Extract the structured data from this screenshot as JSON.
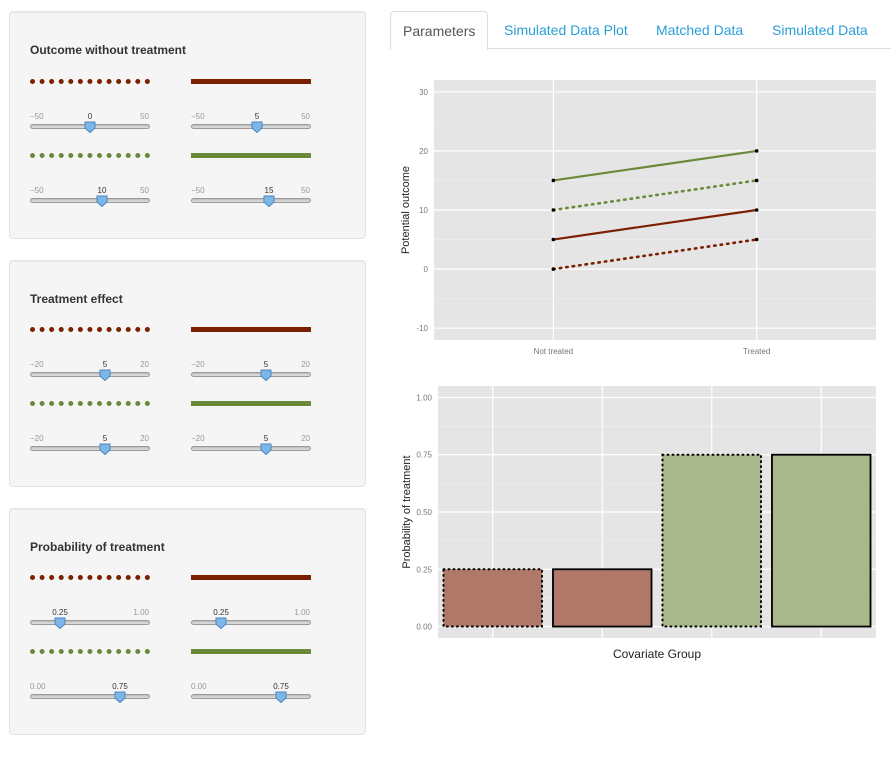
{
  "tabs": [
    {
      "label": "Parameters",
      "active": true
    },
    {
      "label": "Simulated Data Plot",
      "active": false
    },
    {
      "label": "Matched Data",
      "active": false
    },
    {
      "label": "Simulated Data",
      "active": false
    }
  ],
  "colors": {
    "red": "#7b2000",
    "green": "#6a8a3a",
    "bar_red": "#b07868",
    "bar_green": "#a8b88a",
    "plot_bg": "#e5e5e5",
    "accent": "#2a9fd6"
  },
  "panels": [
    {
      "title": "Outcome without treatment",
      "sliders": [
        {
          "min": "−50",
          "max": "50",
          "value": "0",
          "level": 0.5
        },
        {
          "min": "−50",
          "max": "50",
          "value": "5",
          "level": 0.55
        },
        {
          "min": "−50",
          "max": "50",
          "value": "10",
          "level": 0.6
        },
        {
          "min": "−50",
          "max": "50",
          "value": "15",
          "level": 0.65
        }
      ]
    },
    {
      "title": "Treatment effect",
      "sliders": [
        {
          "min": "−20",
          "max": "20",
          "value": "5",
          "level": 0.625
        },
        {
          "min": "−20",
          "max": "20",
          "value": "5",
          "level": 0.625
        },
        {
          "min": "−20",
          "max": "20",
          "value": "5",
          "level": 0.625
        },
        {
          "min": "−20",
          "max": "20",
          "value": "5",
          "level": 0.625
        }
      ]
    },
    {
      "title": "Probability of treatment",
      "sliders": [
        {
          "min": "",
          "max": "1.00",
          "value": "0.25",
          "level": 0.25
        },
        {
          "min": "",
          "max": "1.00",
          "value": "0.25",
          "level": 0.25
        },
        {
          "min": "0.00",
          "max": "",
          "value": "0.75",
          "level": 0.75
        },
        {
          "min": "0.00",
          "max": "",
          "value": "0.75",
          "level": 0.75
        }
      ]
    }
  ],
  "chart_data": [
    {
      "type": "line",
      "xlabel": "",
      "ylabel": "Potential outcome",
      "categories": [
        "Not treated",
        "Treated"
      ],
      "ylim": [
        -12,
        32
      ],
      "yticks": [
        "-10",
        "0",
        "10",
        "20",
        "30"
      ],
      "ytick_values": [
        -10,
        0,
        10,
        20,
        30
      ],
      "grid": true,
      "series": [
        {
          "values": [
            15,
            20
          ],
          "color": "#6a8a3a",
          "style": "solid"
        },
        {
          "values": [
            10,
            15
          ],
          "color": "#6a8a3a",
          "style": "dotted"
        },
        {
          "values": [
            5,
            10
          ],
          "color": "#7b2000",
          "style": "solid"
        },
        {
          "values": [
            0,
            5
          ],
          "color": "#7b2000",
          "style": "dotted"
        }
      ]
    },
    {
      "type": "bar",
      "xlabel": "Covariate Group",
      "ylabel": "Probability of treatment",
      "ylim": [
        -0.05,
        1.05
      ],
      "yticks": [
        "0.00",
        "0.25",
        "0.50",
        "0.75",
        "1.00"
      ],
      "ytick_values": [
        0,
        0.25,
        0.5,
        0.75,
        1.0
      ],
      "grid": true,
      "values": [
        0.25,
        0.25,
        0.75,
        0.75
      ],
      "fills": [
        "#b07868",
        "#b07868",
        "#a8b88a",
        "#a8b88a"
      ],
      "borders": [
        "dotted",
        "solid",
        "dotted",
        "solid"
      ]
    }
  ]
}
